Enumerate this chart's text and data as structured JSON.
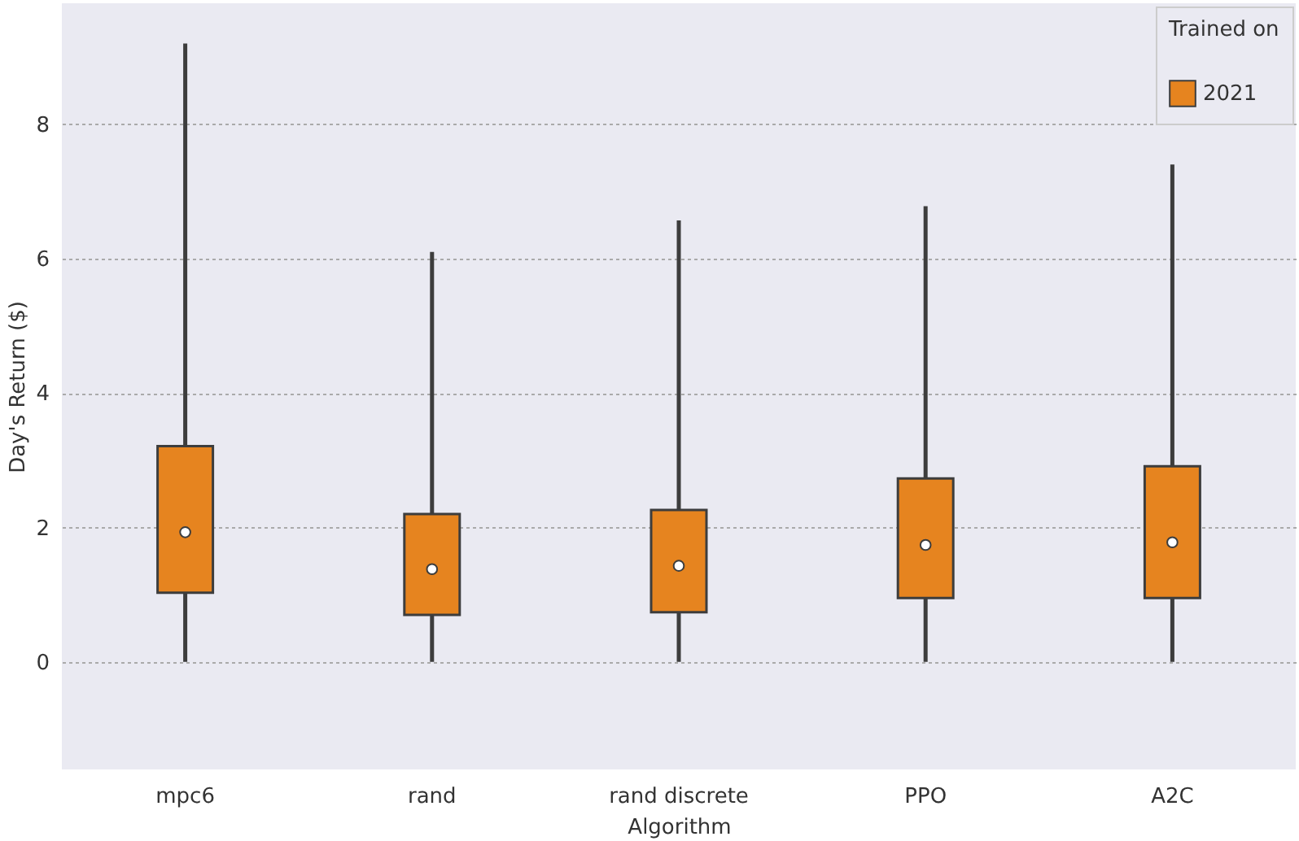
{
  "chart_data": {
    "type": "box",
    "xlabel": "Algorithm",
    "ylabel": "Day's Return ($)",
    "legend_title": "Trained on",
    "categories": [
      "mpc6",
      "rand",
      "rand discrete",
      "PPO",
      "A2C"
    ],
    "series": [
      {
        "name": "2021",
        "color": "#e6841f",
        "boxes": [
          {
            "low": 0,
            "q1": 1.03,
            "median": 1.93,
            "q3": 3.21,
            "high": 9.2
          },
          {
            "low": 0,
            "q1": 0.7,
            "median": 1.38,
            "q3": 2.2,
            "high": 6.1
          },
          {
            "low": 0,
            "q1": 0.74,
            "median": 1.43,
            "q3": 2.26,
            "high": 6.57
          },
          {
            "low": 0,
            "q1": 0.95,
            "median": 1.74,
            "q3": 2.73,
            "high": 6.78
          },
          {
            "low": 0,
            "q1": 0.95,
            "median": 1.78,
            "q3": 2.91,
            "high": 7.4
          }
        ]
      }
    ],
    "ylim": [
      -1.6,
      9.8
    ],
    "yticks": [
      0,
      2,
      4,
      6,
      8
    ],
    "grid": "y",
    "legend": "top right"
  }
}
